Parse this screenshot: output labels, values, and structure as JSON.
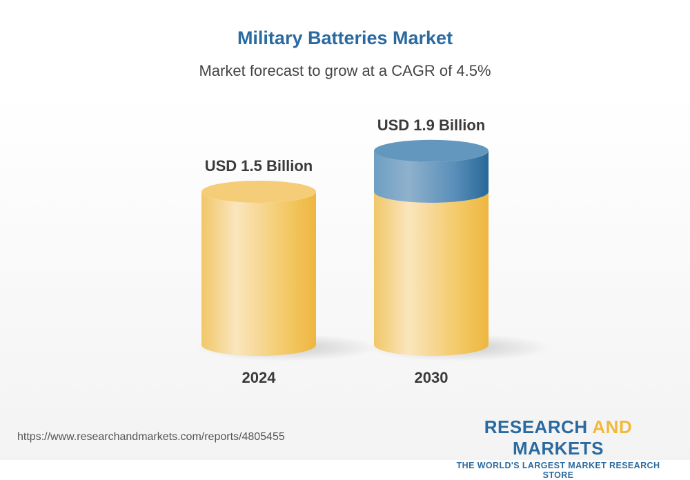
{
  "title": "Military Batteries Market",
  "subtitle": "Market forecast to grow at a CAGR of 4.5%",
  "chart_data": {
    "type": "bar",
    "style": "3d-cylinder",
    "categories": [
      "2024",
      "2030"
    ],
    "values": [
      1.5,
      1.9
    ],
    "unit": "USD Billion",
    "data_labels": [
      "USD 1.5 Billion",
      "USD 1.9 Billion"
    ],
    "colors": {
      "base": "#f2c45a",
      "growth": "#4f87b5"
    }
  },
  "footer": {
    "url": "https://www.researchandmarkets.com/reports/4805455",
    "logo_part1": "RESEARCH ",
    "logo_part2": "AND",
    "logo_part3": " MARKETS",
    "tagline": "THE WORLD'S LARGEST MARKET RESEARCH STORE"
  }
}
